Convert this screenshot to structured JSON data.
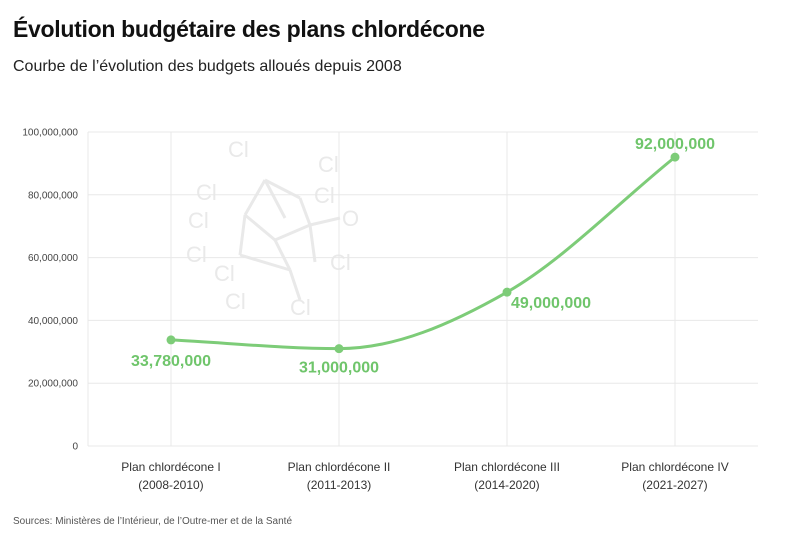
{
  "header": {
    "title": "Évolution budgétaire des plans chlordécone",
    "subtitle": "Courbe de l’évolution des budgets alloués depuis 2008"
  },
  "footer": {
    "source": "Sources: Ministères de l’Intérieur, de l’Outre-mer et de la Santé"
  },
  "colors": {
    "series": "#7dcc78",
    "label": "#6fc56b",
    "grid": "#e8e8e8",
    "watermark": "#e9e9e9"
  },
  "watermark": {
    "atoms": [
      "Cl",
      "Cl",
      "Cl",
      "Cl",
      "Cl",
      "Cl",
      "Cl",
      "Cl",
      "Cl",
      "Cl",
      "O"
    ]
  },
  "chart_data": {
    "type": "line",
    "title": "Évolution budgétaire des plans chlordécone",
    "subtitle": "Courbe de l’évolution des budgets alloués depuis 2008",
    "categories": [
      [
        "Plan chlordécone I",
        "(2008-2010)"
      ],
      [
        "Plan chlordécone II",
        "(2011-2013)"
      ],
      [
        "Plan chlordécone III",
        "(2014-2020)"
      ],
      [
        "Plan chlordécone IV",
        "(2021-2027)"
      ]
    ],
    "values": [
      33780000,
      31000000,
      49000000,
      92000000
    ],
    "data_labels": [
      "33,780,000",
      "31,000,000",
      "49,000,000",
      "92,000,000"
    ],
    "yticks": [
      0,
      20000000,
      40000000,
      60000000,
      80000000,
      100000000
    ],
    "ytick_labels": [
      "0",
      "20,000,000",
      "40,000,000",
      "60,000,000",
      "80,000,000",
      "100,000,000"
    ],
    "ylim": [
      0,
      100000000
    ],
    "xlabel": "",
    "ylabel": "",
    "grid": true,
    "curve": "smooth"
  }
}
